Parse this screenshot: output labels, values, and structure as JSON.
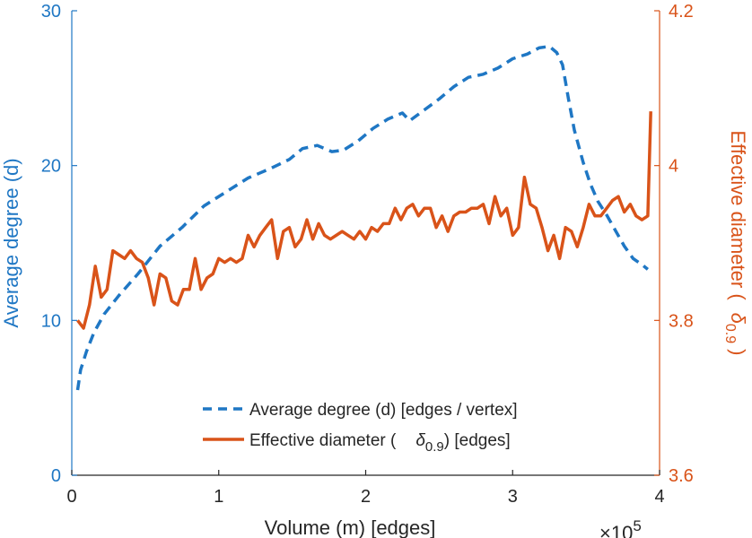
{
  "chart_data": {
    "type": "line",
    "xlabel": "Volume (m) [edges]",
    "x_multiplier": "×10",
    "x_multiplier_exp": "5",
    "xlim": [
      0,
      4
    ],
    "xticks": [
      0,
      1,
      2,
      3,
      4
    ],
    "xtick_labels": [
      "0",
      "1",
      "2",
      "3",
      "4"
    ],
    "y_left": {
      "label": "Average degree (d)",
      "lim": [
        0,
        30
      ],
      "ticks": [
        0,
        10,
        20,
        30
      ],
      "tick_labels": [
        "0",
        "10",
        "20",
        "30"
      ],
      "color": "#1f77c4"
    },
    "y_right": {
      "label_prefix": "Effective diameter (",
      "label_symbol": "δ",
      "label_sub": "0.9",
      "label_suffix": ")",
      "lim": [
        3.6,
        4.2
      ],
      "ticks": [
        3.6,
        3.8,
        4.0,
        4.2
      ],
      "tick_labels": [
        "3.6",
        "3.8",
        "4",
        "4.2"
      ],
      "color": "#d95319"
    },
    "legend": {
      "placement": "bottom-center",
      "entries": [
        {
          "text": "Average degree (d) [edges / vertex]",
          "style": "dashed",
          "color": "#1f77c4"
        },
        {
          "text_prefix": "Effective diameter (",
          "symbol": "δ",
          "sub": "0.9",
          "text_suffix": ") [edges]",
          "style": "solid",
          "color": "#d95319"
        }
      ]
    },
    "series": [
      {
        "name": "Average degree (d) [edges / vertex]",
        "axis": "left",
        "style": "dashed",
        "color": "#1f77c4",
        "points": [
          [
            0.04,
            5.5
          ],
          [
            0.06,
            6.8
          ],
          [
            0.1,
            8.0
          ],
          [
            0.15,
            9.2
          ],
          [
            0.22,
            10.4
          ],
          [
            0.32,
            11.6
          ],
          [
            0.45,
            13.0
          ],
          [
            0.6,
            14.8
          ],
          [
            0.75,
            16.0
          ],
          [
            0.9,
            17.4
          ],
          [
            1.05,
            18.3
          ],
          [
            1.2,
            19.2
          ],
          [
            1.35,
            19.8
          ],
          [
            1.48,
            20.4
          ],
          [
            1.57,
            21.1
          ],
          [
            1.67,
            21.3
          ],
          [
            1.77,
            20.9
          ],
          [
            1.85,
            21.0
          ],
          [
            1.95,
            21.6
          ],
          [
            2.05,
            22.4
          ],
          [
            2.15,
            23.0
          ],
          [
            2.25,
            23.4
          ],
          [
            2.3,
            22.9
          ],
          [
            2.4,
            23.6
          ],
          [
            2.5,
            24.3
          ],
          [
            2.6,
            25.1
          ],
          [
            2.7,
            25.7
          ],
          [
            2.8,
            25.9
          ],
          [
            2.9,
            26.3
          ],
          [
            3.0,
            26.9
          ],
          [
            3.1,
            27.2
          ],
          [
            3.18,
            27.6
          ],
          [
            3.25,
            27.7
          ],
          [
            3.3,
            27.3
          ],
          [
            3.34,
            26.5
          ],
          [
            3.38,
            24.3
          ],
          [
            3.42,
            22.3
          ],
          [
            3.48,
            20.2
          ],
          [
            3.53,
            18.8
          ],
          [
            3.58,
            17.7
          ],
          [
            3.64,
            16.8
          ],
          [
            3.7,
            15.8
          ],
          [
            3.76,
            14.8
          ],
          [
            3.82,
            14.0
          ],
          [
            3.88,
            13.6
          ],
          [
            3.92,
            13.3
          ]
        ]
      },
      {
        "name": "Effective diameter (δ0.9) [edges]",
        "axis": "right",
        "style": "solid",
        "color": "#d95319",
        "points": [
          [
            0.04,
            3.8
          ],
          [
            0.08,
            3.79
          ],
          [
            0.12,
            3.82
          ],
          [
            0.16,
            3.87
          ],
          [
            0.2,
            3.83
          ],
          [
            0.24,
            3.84
          ],
          [
            0.28,
            3.89
          ],
          [
            0.32,
            3.885
          ],
          [
            0.36,
            3.88
          ],
          [
            0.4,
            3.89
          ],
          [
            0.44,
            3.88
          ],
          [
            0.48,
            3.875
          ],
          [
            0.52,
            3.855
          ],
          [
            0.56,
            3.82
          ],
          [
            0.6,
            3.86
          ],
          [
            0.64,
            3.855
          ],
          [
            0.68,
            3.825
          ],
          [
            0.72,
            3.82
          ],
          [
            0.76,
            3.84
          ],
          [
            0.8,
            3.84
          ],
          [
            0.84,
            3.88
          ],
          [
            0.88,
            3.84
          ],
          [
            0.92,
            3.855
          ],
          [
            0.96,
            3.86
          ],
          [
            1.0,
            3.88
          ],
          [
            1.04,
            3.875
          ],
          [
            1.08,
            3.88
          ],
          [
            1.12,
            3.875
          ],
          [
            1.16,
            3.88
          ],
          [
            1.2,
            3.91
          ],
          [
            1.24,
            3.895
          ],
          [
            1.28,
            3.91
          ],
          [
            1.32,
            3.92
          ],
          [
            1.36,
            3.93
          ],
          [
            1.4,
            3.88
          ],
          [
            1.44,
            3.915
          ],
          [
            1.48,
            3.92
          ],
          [
            1.52,
            3.895
          ],
          [
            1.56,
            3.905
          ],
          [
            1.6,
            3.93
          ],
          [
            1.64,
            3.905
          ],
          [
            1.68,
            3.925
          ],
          [
            1.72,
            3.91
          ],
          [
            1.76,
            3.905
          ],
          [
            1.8,
            3.91
          ],
          [
            1.84,
            3.915
          ],
          [
            1.88,
            3.91
          ],
          [
            1.92,
            3.905
          ],
          [
            1.96,
            3.915
          ],
          [
            2.0,
            3.905
          ],
          [
            2.04,
            3.92
          ],
          [
            2.08,
            3.915
          ],
          [
            2.12,
            3.925
          ],
          [
            2.16,
            3.925
          ],
          [
            2.2,
            3.945
          ],
          [
            2.24,
            3.93
          ],
          [
            2.28,
            3.945
          ],
          [
            2.32,
            3.95
          ],
          [
            2.36,
            3.935
          ],
          [
            2.4,
            3.945
          ],
          [
            2.44,
            3.945
          ],
          [
            2.48,
            3.92
          ],
          [
            2.52,
            3.935
          ],
          [
            2.56,
            3.915
          ],
          [
            2.6,
            3.935
          ],
          [
            2.64,
            3.94
          ],
          [
            2.68,
            3.94
          ],
          [
            2.72,
            3.945
          ],
          [
            2.76,
            3.945
          ],
          [
            2.8,
            3.95
          ],
          [
            2.84,
            3.925
          ],
          [
            2.88,
            3.96
          ],
          [
            2.92,
            3.935
          ],
          [
            2.96,
            3.945
          ],
          [
            3.0,
            3.91
          ],
          [
            3.04,
            3.92
          ],
          [
            3.08,
            3.985
          ],
          [
            3.12,
            3.95
          ],
          [
            3.16,
            3.945
          ],
          [
            3.2,
            3.92
          ],
          [
            3.24,
            3.89
          ],
          [
            3.28,
            3.91
          ],
          [
            3.32,
            3.88
          ],
          [
            3.36,
            3.92
          ],
          [
            3.4,
            3.915
          ],
          [
            3.44,
            3.895
          ],
          [
            3.48,
            3.92
          ],
          [
            3.52,
            3.95
          ],
          [
            3.56,
            3.935
          ],
          [
            3.6,
            3.935
          ],
          [
            3.64,
            3.945
          ],
          [
            3.68,
            3.955
          ],
          [
            3.72,
            3.96
          ],
          [
            3.76,
            3.94
          ],
          [
            3.8,
            3.95
          ],
          [
            3.84,
            3.935
          ],
          [
            3.88,
            3.93
          ],
          [
            3.92,
            3.935
          ],
          [
            3.94,
            4.07
          ]
        ]
      }
    ]
  }
}
